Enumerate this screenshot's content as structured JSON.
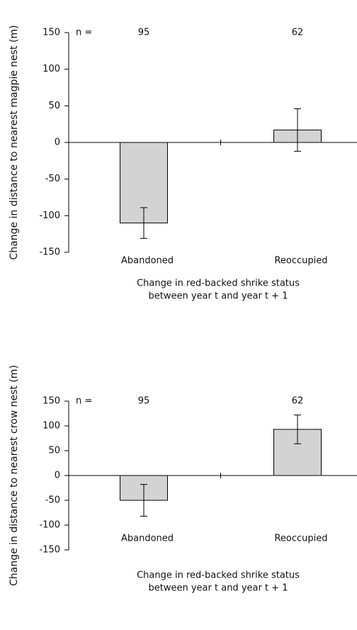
{
  "chart_data": [
    {
      "type": "bar",
      "ylabel": "Change in distance to nearest magpie nest (m)",
      "xlabel": [
        "Change in red-backed shrike status",
        "between year t and year t + 1"
      ],
      "categories": [
        "Abandoned",
        "Reoccupied"
      ],
      "values": [
        -110,
        17
      ],
      "errors": [
        21,
        29
      ],
      "n_label": "n =",
      "n": [
        95,
        62
      ],
      "color": "#d3d3d3",
      "ylim": [
        -150,
        150
      ],
      "yticks": [
        -150,
        -100,
        -50,
        0,
        50,
        100,
        150
      ]
    },
    {
      "type": "bar",
      "ylabel": "Change in distance to nearest crow nest (m)",
      "xlabel": [
        "Change in red-backed shrike status",
        "between year t and year t + 1"
      ],
      "categories": [
        "Abandoned",
        "Reoccupied"
      ],
      "values": [
        -50,
        93
      ],
      "errors": [
        32,
        29
      ],
      "n_label": "n =",
      "n": [
        95,
        62
      ],
      "color": "#d3d3d3",
      "ylim": [
        -150,
        150
      ],
      "yticks": [
        -150,
        -100,
        -50,
        0,
        50,
        100,
        150
      ]
    }
  ]
}
